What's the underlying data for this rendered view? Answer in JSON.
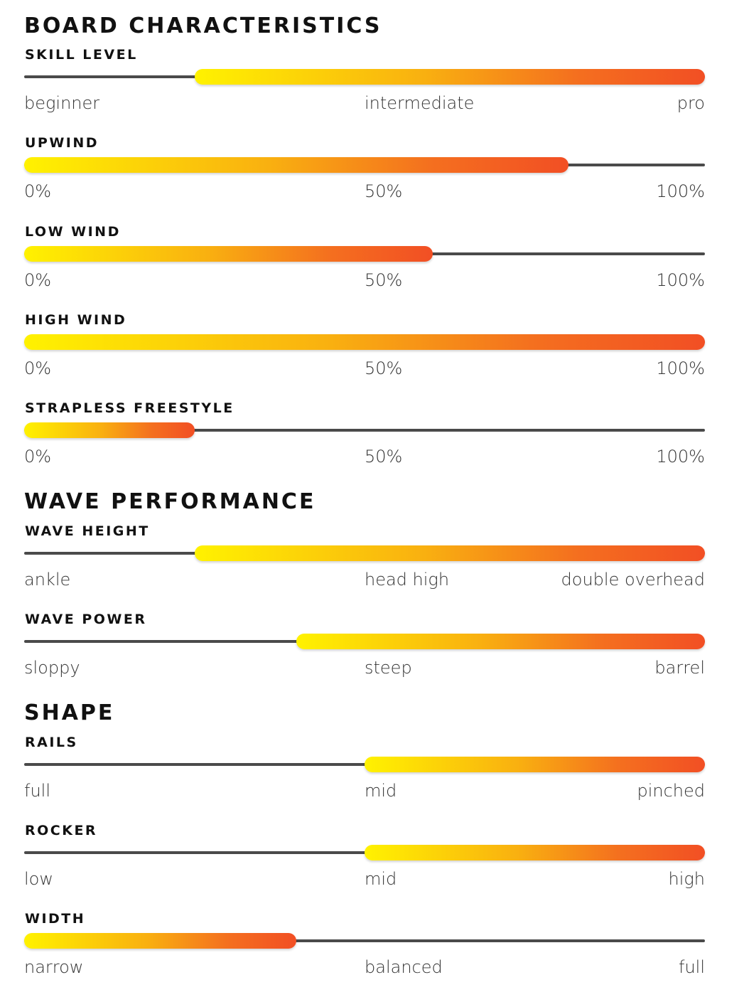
{
  "sections": [
    {
      "title": "BOARD CHARACTERISTICS",
      "metrics": [
        {
          "title": "SKILL LEVEL",
          "labels": [
            "beginner",
            "intermediate",
            "pro"
          ],
          "range": [
            0.25,
            1.0
          ]
        },
        {
          "title": "UPWIND",
          "labels": [
            "0%",
            "50%",
            "100%"
          ],
          "range": [
            0.0,
            0.8
          ]
        },
        {
          "title": "LOW WIND",
          "labels": [
            "0%",
            "50%",
            "100%"
          ],
          "range": [
            0.0,
            0.6
          ]
        },
        {
          "title": "HIGH WIND",
          "labels": [
            "0%",
            "50%",
            "100%"
          ],
          "range": [
            0.0,
            1.0
          ]
        },
        {
          "title": "STRAPLESS FREESTYLE",
          "labels": [
            "0%",
            "50%",
            "100%"
          ],
          "range": [
            0.0,
            0.25
          ]
        }
      ]
    },
    {
      "title": "WAVE PERFORMANCE",
      "metrics": [
        {
          "title": "WAVE HEIGHT",
          "labels": [
            "ankle",
            "head high",
            "double overhead"
          ],
          "range": [
            0.25,
            1.0
          ]
        },
        {
          "title": "WAVE POWER",
          "labels": [
            "sloppy",
            "steep",
            "barrel"
          ],
          "range": [
            0.4,
            1.0
          ]
        }
      ]
    },
    {
      "title": "SHAPE",
      "metrics": [
        {
          "title": "RAILS",
          "labels": [
            "full",
            "mid",
            "pinched"
          ],
          "range": [
            0.5,
            1.0
          ]
        },
        {
          "title": "ROCKER",
          "labels": [
            "low",
            "mid",
            "high"
          ],
          "range": [
            0.5,
            1.0
          ]
        },
        {
          "title": "WIDTH",
          "labels": [
            "narrow",
            "balanced",
            "full"
          ],
          "range": [
            0.0,
            0.4
          ]
        }
      ]
    }
  ],
  "colors": {
    "gradient_start": "#fff200",
    "gradient_end": "#f24f24",
    "track": "#4a4a4a"
  }
}
